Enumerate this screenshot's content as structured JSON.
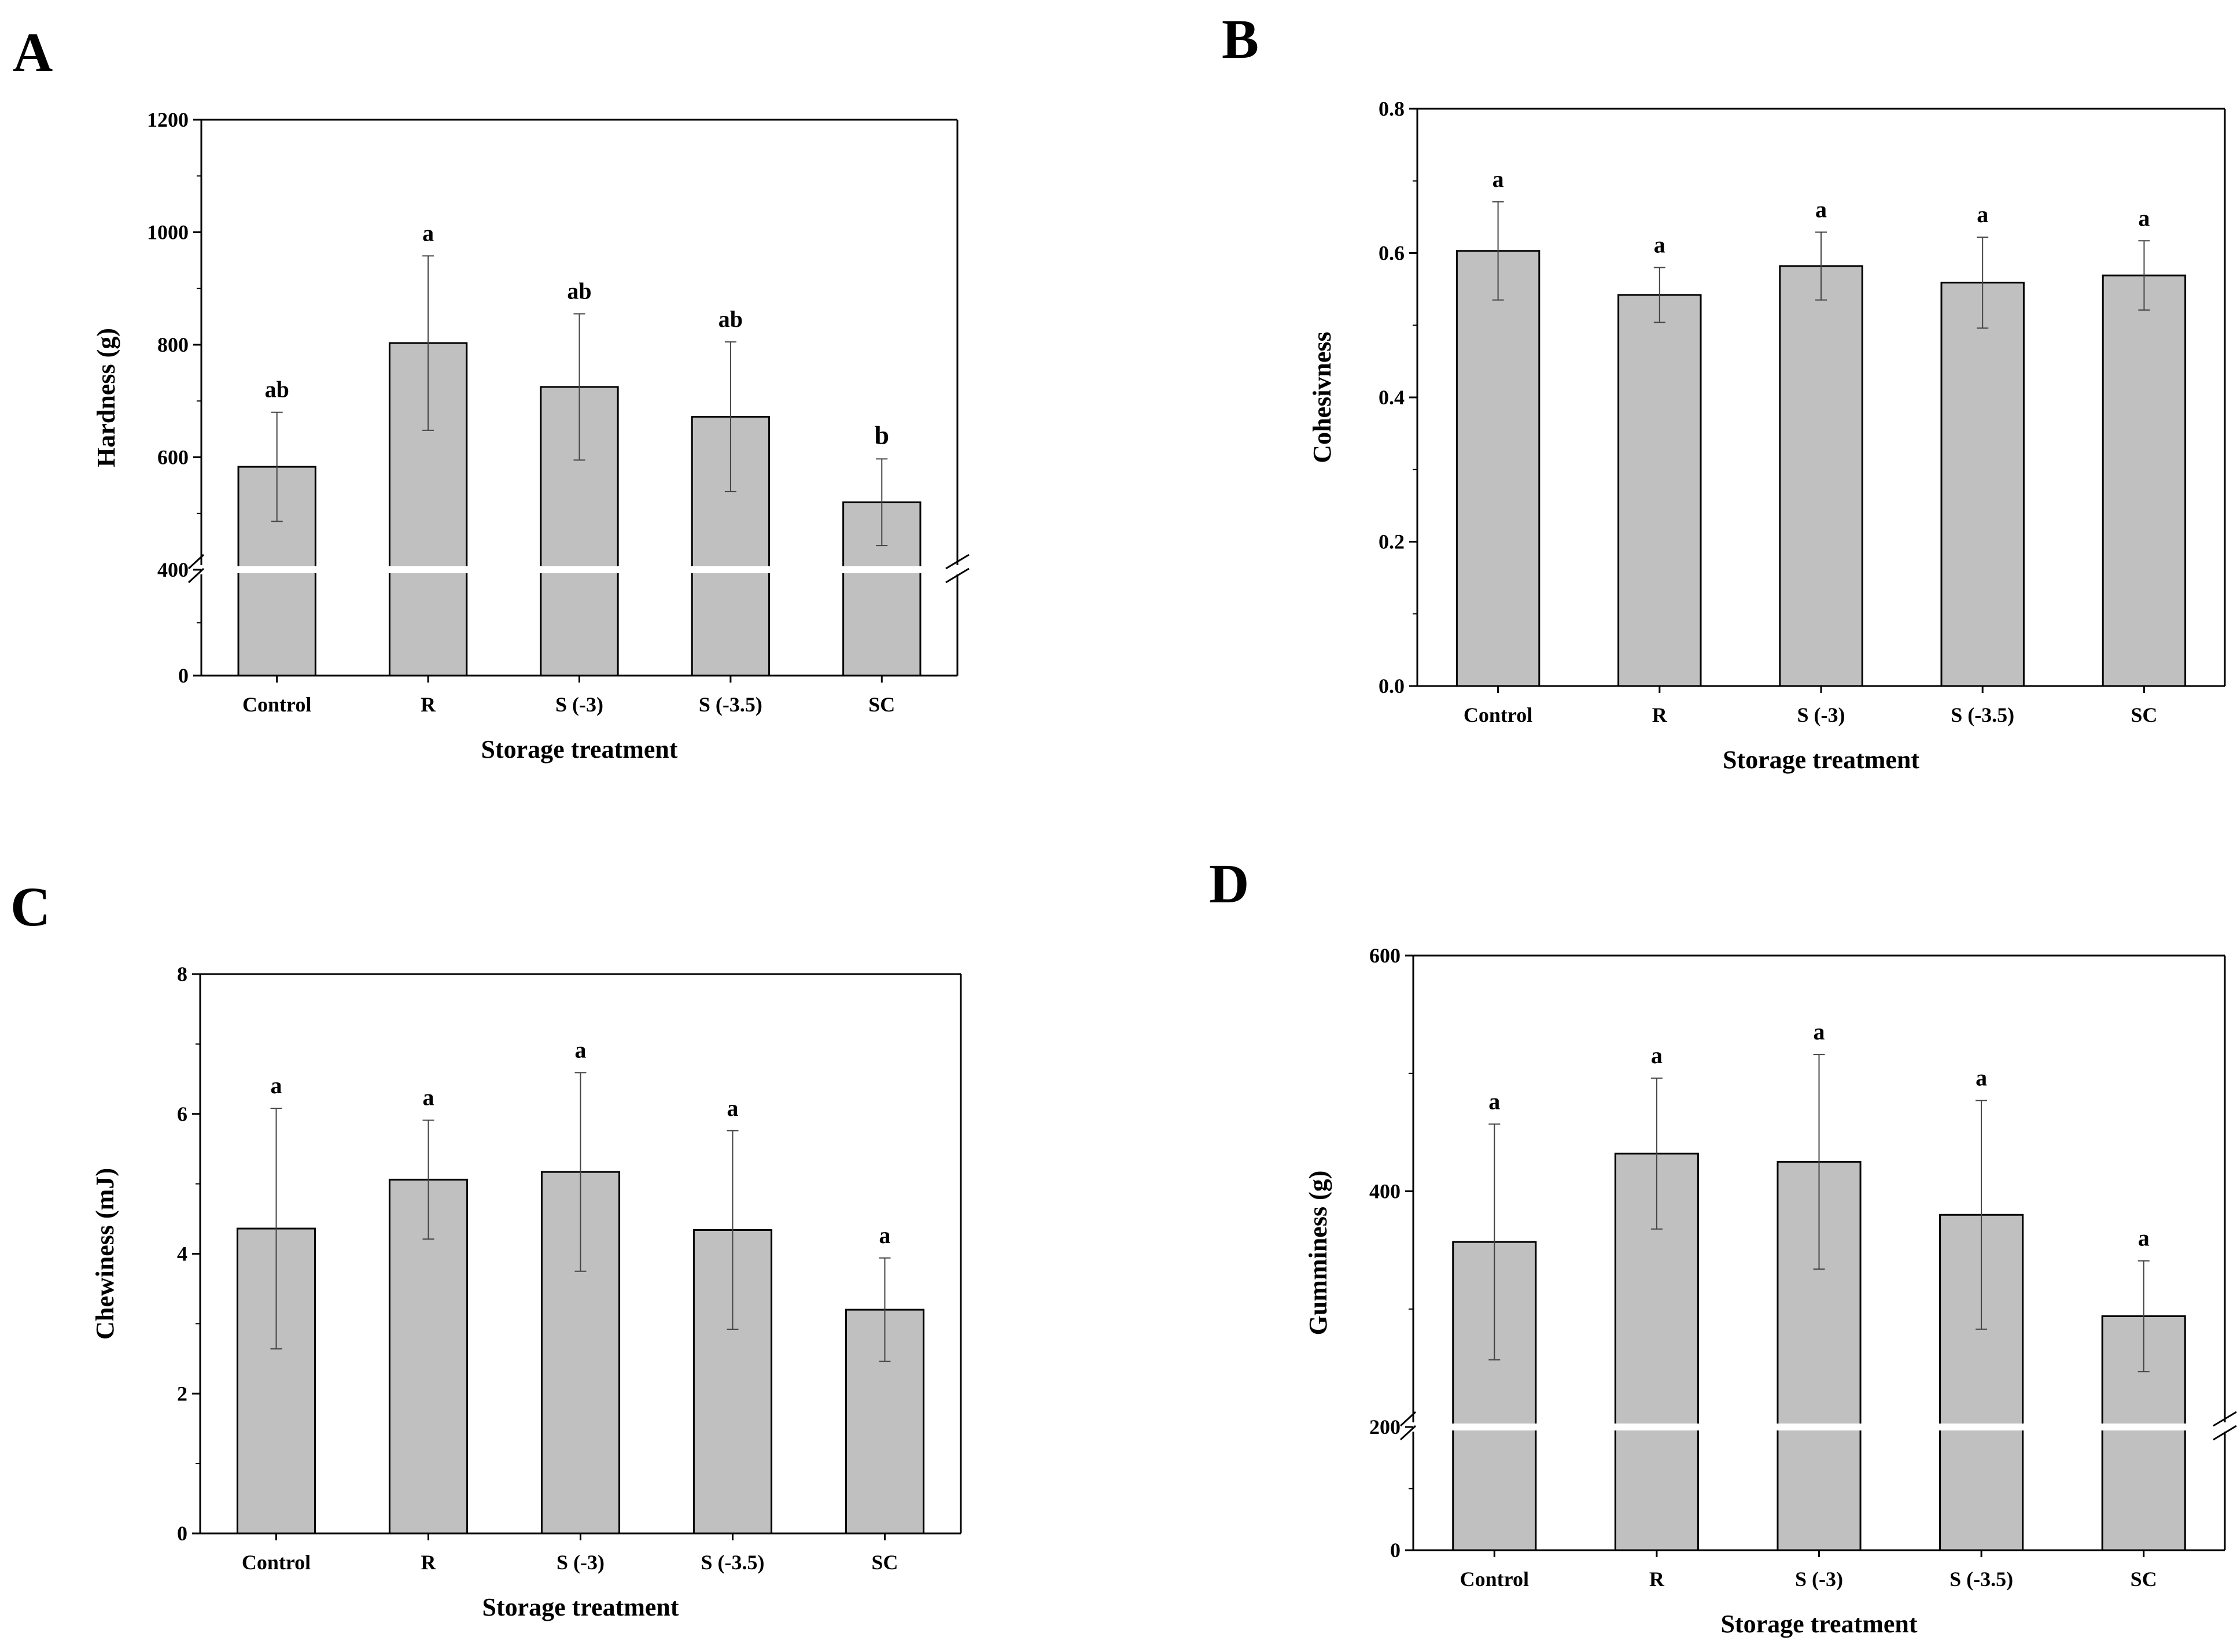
{
  "colors": {
    "bar": "#c0c0c0",
    "stroke": "#000000",
    "background": "#ffffff",
    "gap": "#ffffff"
  },
  "chart_data": [
    {
      "panel": "A",
      "type": "bar",
      "categories": [
        "Control",
        "R",
        "S (-3)",
        "S (-3.5)",
        "SC"
      ],
      "values": [
        583,
        803,
        725,
        672,
        520
      ],
      "errors": [
        97,
        155,
        130,
        133,
        77
      ],
      "significance": [
        "ab",
        "a",
        "ab",
        "ab",
        "b"
      ],
      "xlabel": "Storage treatment",
      "ylabel": "Hardness (g)",
      "axis_break": {
        "at": 400
      },
      "yticks": [
        0,
        400,
        600,
        800,
        1000,
        1200
      ],
      "ylim": [
        0,
        1200
      ]
    },
    {
      "panel": "B",
      "type": "bar",
      "categories": [
        "Control",
        "R",
        "S (-3)",
        "S (-3.5)",
        "SC"
      ],
      "values": [
        0.603,
        0.542,
        0.582,
        0.559,
        0.569
      ],
      "errors": [
        0.068,
        0.038,
        0.047,
        0.063,
        0.048
      ],
      "significance": [
        "a",
        "a",
        "a",
        "a",
        "a"
      ],
      "xlabel": "Storage treatment",
      "ylabel": "Cohesivness",
      "yticks": [
        0.0,
        0.2,
        0.4,
        0.6,
        0.8
      ],
      "ytick_labels": [
        "0.0",
        "0.2",
        "0.4",
        "0.6",
        "0.8"
      ],
      "ylim": [
        0,
        0.8
      ]
    },
    {
      "panel": "C",
      "type": "bar",
      "categories": [
        "Control",
        "R",
        "S (-3)",
        "S (-3.5)",
        "SC"
      ],
      "values": [
        4.36,
        5.06,
        5.17,
        4.34,
        3.2
      ],
      "errors": [
        1.72,
        0.85,
        1.42,
        1.42,
        0.74
      ],
      "significance": [
        "a",
        "a",
        "a",
        "a",
        "a"
      ],
      "xlabel": "Storage treatment",
      "ylabel": "Chewiness (mJ)",
      "yticks": [
        0,
        2,
        4,
        6,
        8
      ],
      "ylim": [
        0,
        8
      ]
    },
    {
      "panel": "D",
      "type": "bar",
      "categories": [
        "Control",
        "R",
        "S (-3)",
        "S (-3.5)",
        "SC"
      ],
      "values": [
        357,
        432,
        425,
        380,
        294
      ],
      "errors": [
        100,
        64,
        91,
        97,
        47
      ],
      "significance": [
        "a",
        "a",
        "a",
        "a",
        "a"
      ],
      "xlabel": "Storage treatment",
      "ylabel": "Gumminess (g)",
      "axis_break": {
        "at": 200
      },
      "yticks": [
        0,
        200,
        400,
        600
      ],
      "ytick_labels": [
        "0",
        "200",
        "400",
        "600"
      ],
      "ylim": [
        0,
        600
      ]
    }
  ]
}
